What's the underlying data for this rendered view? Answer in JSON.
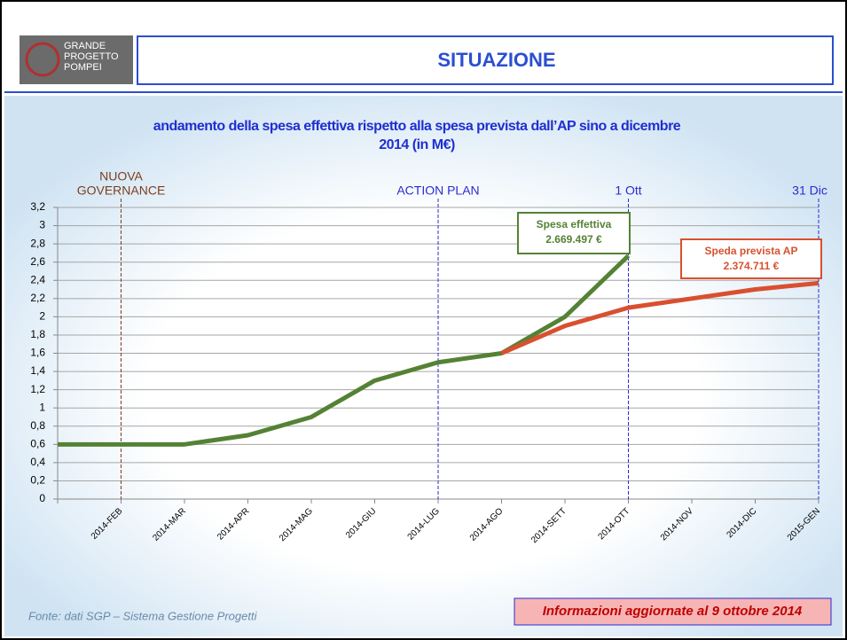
{
  "header": {
    "logo": [
      "GRANDE",
      "PROGETTO",
      "POMPEI"
    ],
    "title": "SITUAZIONE"
  },
  "chart_data": {
    "type": "line",
    "title": [
      "andamento della spesa effettiva rispetto alla spesa prevista dall’AP sino a dicembre",
      "2014 (in M€)"
    ],
    "categories": [
      null,
      "2014-FEB",
      "2014-MAR",
      "2014-APR",
      "2014-MAG",
      "2014-GIU",
      "2014-LUG",
      "2014-AGO",
      "2014-SETT",
      "2014-OTT",
      "2014-NOV",
      "2014-DIC",
      "2015-GEN"
    ],
    "series": [
      {
        "name": "Spesa effettiva",
        "color": "#548235",
        "values": [
          0.6,
          0.6,
          0.6,
          0.7,
          0.9,
          1.3,
          1.5,
          1.6,
          2.0,
          2.67,
          null,
          null,
          null
        ],
        "annotation": "2.669.497 €"
      },
      {
        "name": "Speda prevista AP",
        "color": "#d9502f",
        "values": [
          null,
          null,
          null,
          null,
          null,
          null,
          null,
          1.6,
          1.9,
          2.1,
          2.2,
          2.3,
          2.37
        ],
        "annotation": "2.374.711 €"
      }
    ],
    "ylim": [
      0,
      3.2
    ],
    "yticks": [
      0,
      {
        "value": 0.2,
        "label": "0,2"
      },
      {
        "value": 0.4,
        "label": "0,4"
      },
      {
        "value": 0.6,
        "label": "0,6"
      },
      {
        "value": 0.8,
        "label": "0,8"
      },
      1,
      {
        "value": 1.2,
        "label": "1,2"
      },
      {
        "value": 1.4,
        "label": "1,4"
      },
      {
        "value": 1.6,
        "label": "1,6"
      },
      {
        "value": 1.8,
        "label": "1,8"
      },
      2,
      {
        "value": 2.2,
        "label": "2,2"
      },
      {
        "value": 2.4,
        "label": "2,4"
      },
      {
        "value": 2.6,
        "label": "2,6"
      },
      {
        "value": 2.8,
        "label": "2,8"
      },
      3,
      {
        "value": 3.2,
        "label": "3,2"
      }
    ],
    "grid": true,
    "markers": [
      {
        "label": [
          "NUOVA",
          "GOVERNANCE"
        ],
        "at": "2014-FEB",
        "color": "#7b3f1d"
      },
      {
        "label": [
          "ACTION PLAN"
        ],
        "at": "2014-LUG",
        "color": "#2b2bd0"
      },
      {
        "label": [
          "1 Ott"
        ],
        "at": "2014-OTT",
        "color": "#2b2bd0"
      },
      {
        "label": [
          "31 Dic"
        ],
        "at": "2015-GEN",
        "color": "#2b2bd0"
      }
    ]
  },
  "footer": {
    "source": "Fonte: dati SGP – Sistema Gestione Progetti",
    "note": "Informazioni aggiornate al 9 ottobre 2014"
  }
}
